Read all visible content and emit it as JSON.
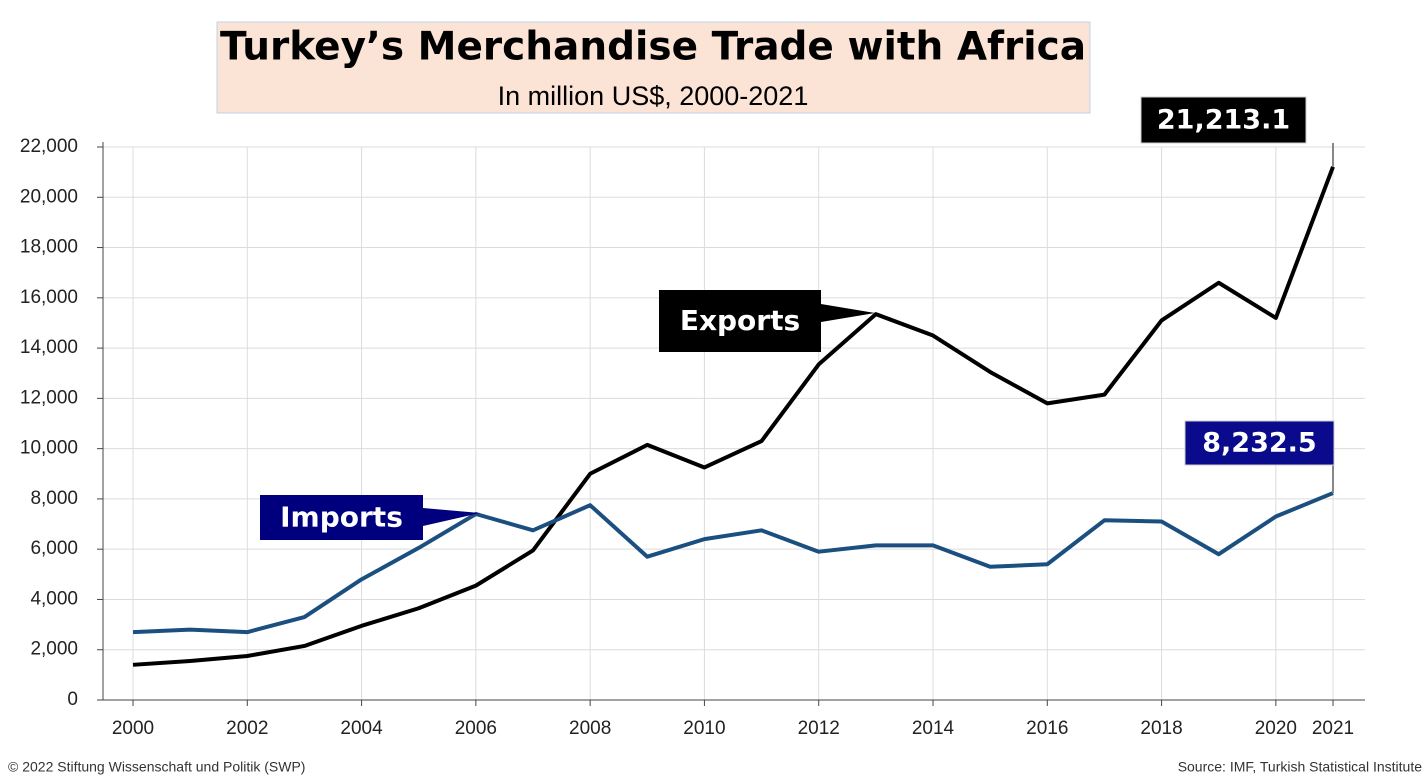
{
  "chart_data": {
    "type": "line",
    "title": "Turkey’s Merchandise Trade with Africa",
    "subtitle": "In million US$, 2000-2021",
    "x": [
      2000,
      2001,
      2002,
      2003,
      2004,
      2005,
      2006,
      2007,
      2008,
      2009,
      2010,
      2011,
      2012,
      2013,
      2014,
      2015,
      2016,
      2017,
      2018,
      2019,
      2020,
      2021
    ],
    "series": [
      {
        "name": "Exports",
        "color": "#000000",
        "values": [
          1400,
          1550,
          1750,
          2150,
          2950,
          3650,
          4550,
          5950,
          9000,
          10150,
          9250,
          10300,
          13350,
          15350,
          14500,
          13050,
          11800,
          12150,
          15100,
          16600,
          15200,
          21213.1
        ],
        "value_labels": [
          null,
          null,
          null,
          null,
          null,
          null,
          null,
          null,
          null,
          null,
          null,
          null,
          null,
          null,
          null,
          null,
          null,
          null,
          null,
          null,
          null,
          "21,213.1"
        ]
      },
      {
        "name": "Imports",
        "color": "#1b4f80",
        "values": [
          2700,
          2800,
          2700,
          3300,
          4800,
          6050,
          7400,
          6750,
          7750,
          5700,
          6400,
          6750,
          5900,
          6150,
          6150,
          5300,
          5400,
          7150,
          7100,
          5800,
          7300,
          8232.5
        ],
        "value_labels": [
          null,
          null,
          null,
          null,
          null,
          null,
          null,
          null,
          null,
          null,
          null,
          null,
          null,
          null,
          null,
          null,
          null,
          null,
          null,
          null,
          null,
          "8,232.5"
        ]
      }
    ],
    "xlim": [
      2000,
      2021
    ],
    "xticks": [
      2000,
      2002,
      2004,
      2006,
      2008,
      2010,
      2012,
      2014,
      2016,
      2018,
      2020,
      2021
    ],
    "ylim": [
      0,
      22000
    ],
    "yticks": [
      0,
      {
        "value": 2000,
        "label": "2,000"
      },
      {
        "value": 4000,
        "label": "4,000"
      },
      {
        "value": 6000,
        "label": "6,000"
      },
      {
        "value": 8000,
        "label": "8,000"
      },
      {
        "value": 10000,
        "label": "10,000"
      },
      {
        "value": 12000,
        "label": "12,000"
      },
      {
        "value": 14000,
        "label": "14,000"
      },
      {
        "value": 16000,
        "label": "16,000"
      },
      {
        "value": 18000,
        "label": "18,000"
      },
      {
        "value": 20000,
        "label": "20,000"
      },
      {
        "value": 22000,
        "label": "22,000"
      }
    ],
    "grid": true,
    "copyright": "© 2022 Stiftung Wissenschaft und Politik (SWP)",
    "source": "Source: IMF, Turkish Statistical Institute"
  }
}
